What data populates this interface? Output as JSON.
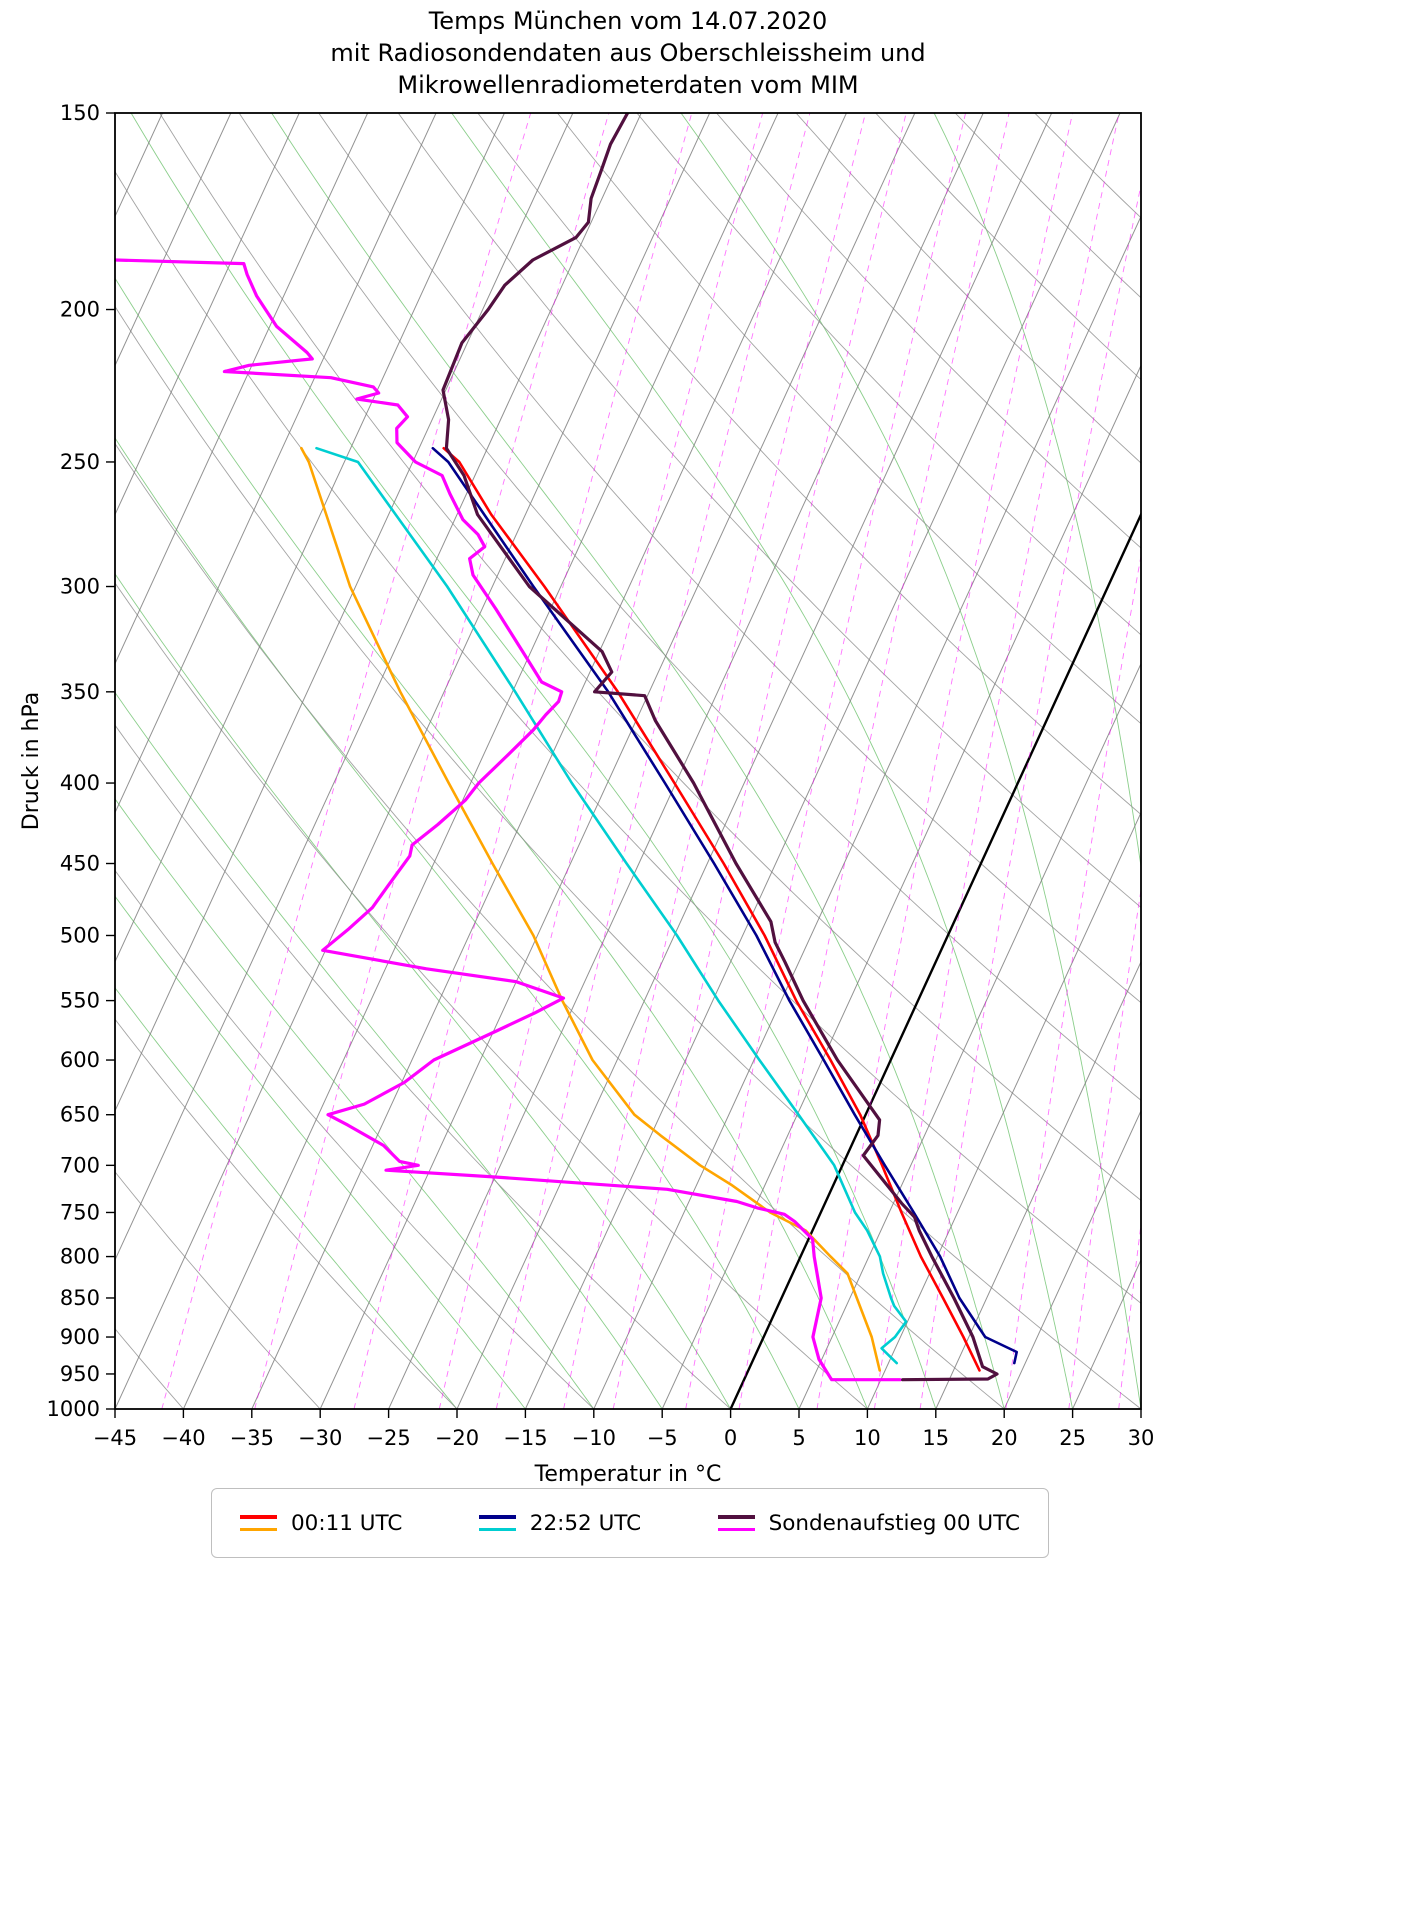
{
  "title": {
    "lines": [
      "Temps München vom 14.07.2020",
      "mit Radiosondendaten aus Oberschleissheim und",
      "Mikrowellenradiometerdaten vom MIM"
    ]
  },
  "chart_data": {
    "type": "line",
    "variant": "skew-t-log-p",
    "xlabel": "Temperatur in °C",
    "ylabel": "Druck in hPa",
    "xlim": [
      -45,
      30
    ],
    "ylim_hpa": [
      1000,
      150
    ],
    "x_ticks": [
      -45,
      -40,
      -35,
      -30,
      -25,
      -20,
      -15,
      -10,
      -5,
      0,
      5,
      10,
      15,
      20,
      25,
      30
    ],
    "y_ticks": [
      150,
      200,
      250,
      300,
      350,
      400,
      450,
      500,
      550,
      600,
      650,
      700,
      750,
      800,
      850,
      900,
      950,
      1000
    ],
    "skew_deg_per_decade": 52.76,
    "grid": "skew-t background: isotherms, dry adiabats, moist adiabats, mixing ratio lines",
    "background": {
      "isotherms": {
        "min": -120,
        "max": 45,
        "step": 5,
        "color": "#7f7f7f",
        "zero_color": "#000000"
      },
      "dry_adiabats": {
        "theta_c": [
          -40,
          -30,
          -20,
          -10,
          0,
          10,
          20,
          30,
          40,
          50,
          60,
          70,
          80,
          90,
          100,
          110,
          120,
          130,
          140,
          150,
          160
        ],
        "color": "#8c8c8c"
      },
      "moist_adiabats": {
        "theta_w_c": [
          -20,
          -15,
          -10,
          -5,
          0,
          5,
          10,
          15,
          20,
          25,
          30,
          35,
          40
        ],
        "color": "#3dae3d"
      },
      "mixing_ratio": {
        "g_per_kg": [
          0.1,
          0.2,
          0.4,
          0.7,
          1,
          1.5,
          2,
          3,
          4,
          6,
          8,
          10,
          15,
          20,
          25
        ],
        "color": "#ff00ff"
      }
    },
    "series": [
      {
        "name": "00:11 UTC Taupunkt",
        "data_name": "series-0011utc-dewpoint",
        "color": "#ffa500",
        "width": 2.6,
        "points": [
          [
            945,
            9.6
          ],
          [
            900,
            7.9
          ],
          [
            850,
            5.5
          ],
          [
            820,
            4.0
          ],
          [
            800,
            2.2
          ],
          [
            770,
            -0.5
          ],
          [
            750,
            -3.7
          ],
          [
            720,
            -7.5
          ],
          [
            700,
            -10.4
          ],
          [
            670,
            -14.3
          ],
          [
            650,
            -16.9
          ],
          [
            600,
            -21.8
          ],
          [
            550,
            -26.0
          ],
          [
            500,
            -30.3
          ],
          [
            450,
            -35.7
          ],
          [
            400,
            -41.6
          ],
          [
            350,
            -48.2
          ],
          [
            300,
            -55.4
          ],
          [
            250,
            -62.6
          ],
          [
            245,
            -63.6
          ]
        ]
      },
      {
        "name": "00:11 UTC Temperatur",
        "data_name": "series-0011utc-temperature",
        "color": "#ff0000",
        "width": 2.6,
        "points": [
          [
            945,
            16.9
          ],
          [
            900,
            14.6
          ],
          [
            850,
            11.8
          ],
          [
            800,
            8.8
          ],
          [
            750,
            5.9
          ],
          [
            700,
            2.9
          ],
          [
            650,
            -0.4
          ],
          [
            600,
            -4.4
          ],
          [
            550,
            -8.9
          ],
          [
            500,
            -13.4
          ],
          [
            450,
            -18.8
          ],
          [
            400,
            -25.1
          ],
          [
            350,
            -32.3
          ],
          [
            300,
            -41.2
          ],
          [
            270,
            -47.5
          ],
          [
            250,
            -51.6
          ],
          [
            245,
            -53.2
          ]
        ]
      },
      {
        "name": "22:52 UTC Taupunkt",
        "data_name": "series-2252utc-dewpoint",
        "color": "#00ced1",
        "width": 2.6,
        "points": [
          [
            935,
            10.6
          ],
          [
            915,
            9.0
          ],
          [
            900,
            9.6
          ],
          [
            880,
            9.9
          ],
          [
            860,
            8.5
          ],
          [
            850,
            8.0
          ],
          [
            820,
            6.6
          ],
          [
            800,
            5.8
          ],
          [
            770,
            4.0
          ],
          [
            750,
            2.5
          ],
          [
            700,
            -0.6
          ],
          [
            650,
            -4.9
          ],
          [
            600,
            -9.6
          ],
          [
            550,
            -14.6
          ],
          [
            500,
            -19.8
          ],
          [
            450,
            -25.9
          ],
          [
            400,
            -32.6
          ],
          [
            350,
            -39.8
          ],
          [
            300,
            -48.3
          ],
          [
            250,
            -59.0
          ],
          [
            245,
            -62.5
          ]
        ]
      },
      {
        "name": "22:52 UTC Temperatur",
        "data_name": "series-2252utc-temperature",
        "color": "#00008b",
        "width": 2.6,
        "points": [
          [
            935,
            19.2
          ],
          [
            920,
            19.0
          ],
          [
            900,
            16.2
          ],
          [
            850,
            13.0
          ],
          [
            800,
            10.2
          ],
          [
            750,
            6.8
          ],
          [
            700,
            3.1
          ],
          [
            650,
            -0.8
          ],
          [
            600,
            -4.9
          ],
          [
            550,
            -9.4
          ],
          [
            500,
            -14.0
          ],
          [
            450,
            -19.5
          ],
          [
            400,
            -25.8
          ],
          [
            350,
            -33.0
          ],
          [
            300,
            -42.0
          ],
          [
            250,
            -52.4
          ],
          [
            245,
            -54.0
          ]
        ]
      },
      {
        "name": "Sondenaufstieg 00 UTC Taupunkt",
        "data_name": "series-sonde-dewpoint",
        "color": "#ff00ff",
        "width": 3.2,
        "points": [
          [
            958,
            11.4
          ],
          [
            958,
            6.4
          ],
          [
            930,
            4.8
          ],
          [
            900,
            3.6
          ],
          [
            850,
            2.9
          ],
          [
            800,
            1.0
          ],
          [
            780,
            0.3
          ],
          [
            760,
            -1.6
          ],
          [
            752,
            -2.6
          ],
          [
            745,
            -4.8
          ],
          [
            738,
            -6.5
          ],
          [
            725,
            -12.0
          ],
          [
            712,
            -25.0
          ],
          [
            705,
            -33.2
          ],
          [
            700,
            -31.0
          ],
          [
            696,
            -32.5
          ],
          [
            680,
            -34.2
          ],
          [
            660,
            -37.5
          ],
          [
            650,
            -39.3
          ],
          [
            640,
            -37.0
          ],
          [
            620,
            -34.8
          ],
          [
            600,
            -33.4
          ],
          [
            575,
            -29.8
          ],
          [
            560,
            -27.6
          ],
          [
            548,
            -26.0
          ],
          [
            535,
            -30.0
          ],
          [
            525,
            -37.0
          ],
          [
            511,
            -45.2
          ],
          [
            495,
            -44.0
          ],
          [
            480,
            -43.0
          ],
          [
            465,
            -42.6
          ],
          [
            445,
            -42.0
          ],
          [
            438,
            -42.2
          ],
          [
            425,
            -41.0
          ],
          [
            410,
            -39.8
          ],
          [
            400,
            -39.4
          ],
          [
            385,
            -38.3
          ],
          [
            370,
            -37.2
          ],
          [
            362,
            -36.8
          ],
          [
            355,
            -36.3
          ],
          [
            350,
            -36.4
          ],
          [
            345,
            -38.2
          ],
          [
            330,
            -40.6
          ],
          [
            310,
            -44.0
          ],
          [
            295,
            -46.8
          ],
          [
            288,
            -47.6
          ],
          [
            283,
            -46.9
          ],
          [
            278,
            -47.8
          ],
          [
            272,
            -49.4
          ],
          [
            262,
            -51.2
          ],
          [
            255,
            -52.4
          ],
          [
            250,
            -54.8
          ],
          [
            243,
            -56.8
          ],
          [
            238,
            -57.3
          ],
          [
            234,
            -56.9
          ],
          [
            230,
            -58.0
          ],
          [
            228,
            -61.2
          ],
          [
            226,
            -59.8
          ],
          [
            224,
            -60.4
          ],
          [
            221,
            -63.8
          ],
          [
            219,
            -71.8
          ],
          [
            217,
            -70.2
          ],
          [
            215,
            -65.8
          ],
          [
            213,
            -66.4
          ],
          [
            205,
            -69.5
          ],
          [
            196,
            -72.0
          ],
          [
            190,
            -73.4
          ],
          [
            187,
            -74.0
          ],
          [
            186,
            -83.5
          ]
        ]
      },
      {
        "name": "Sondenaufstieg 00 UTC Temperatur",
        "data_name": "series-sonde-temperature",
        "color": "#51103f",
        "width": 3.2,
        "points": [
          [
            958,
            11.6
          ],
          [
            957,
            17.8
          ],
          [
            950,
            18.3
          ],
          [
            940,
            17.0
          ],
          [
            900,
            15.3
          ],
          [
            850,
            12.6
          ],
          [
            800,
            9.6
          ],
          [
            770,
            7.8
          ],
          [
            755,
            7.0
          ],
          [
            740,
            5.6
          ],
          [
            700,
            2.1
          ],
          [
            690,
            1.2
          ],
          [
            670,
            1.6
          ],
          [
            655,
            1.2
          ],
          [
            645,
            0.3
          ],
          [
            600,
            -3.9
          ],
          [
            550,
            -8.4
          ],
          [
            520,
            -11.0
          ],
          [
            505,
            -12.4
          ],
          [
            490,
            -13.4
          ],
          [
            450,
            -17.9
          ],
          [
            400,
            -23.7
          ],
          [
            365,
            -28.6
          ],
          [
            352,
            -30.2
          ],
          [
            350,
            -34.0
          ],
          [
            340,
            -33.4
          ],
          [
            330,
            -34.8
          ],
          [
            300,
            -42.3
          ],
          [
            270,
            -48.5
          ],
          [
            255,
            -50.8
          ],
          [
            245,
            -53.0
          ],
          [
            235,
            -53.8
          ],
          [
            225,
            -55.2
          ],
          [
            210,
            -55.4
          ],
          [
            200,
            -54.6
          ],
          [
            193,
            -54.2
          ],
          [
            186,
            -53.0
          ],
          [
            180,
            -50.6
          ],
          [
            176,
            -50.2
          ],
          [
            170,
            -50.8
          ],
          [
            163,
            -51.0
          ],
          [
            157,
            -51.2
          ],
          [
            150,
            -51.0
          ]
        ]
      }
    ],
    "legend": {
      "position": "bottom",
      "entries": [
        {
          "label": "00:11 UTC",
          "colors": [
            "#ff0000",
            "#ffa500"
          ]
        },
        {
          "label": "22:52 UTC",
          "colors": [
            "#00008b",
            "#00ced1"
          ]
        },
        {
          "label": "Sondenaufstieg 00 UTC",
          "colors": [
            "#51103f",
            "#ff00ff"
          ]
        }
      ]
    }
  }
}
